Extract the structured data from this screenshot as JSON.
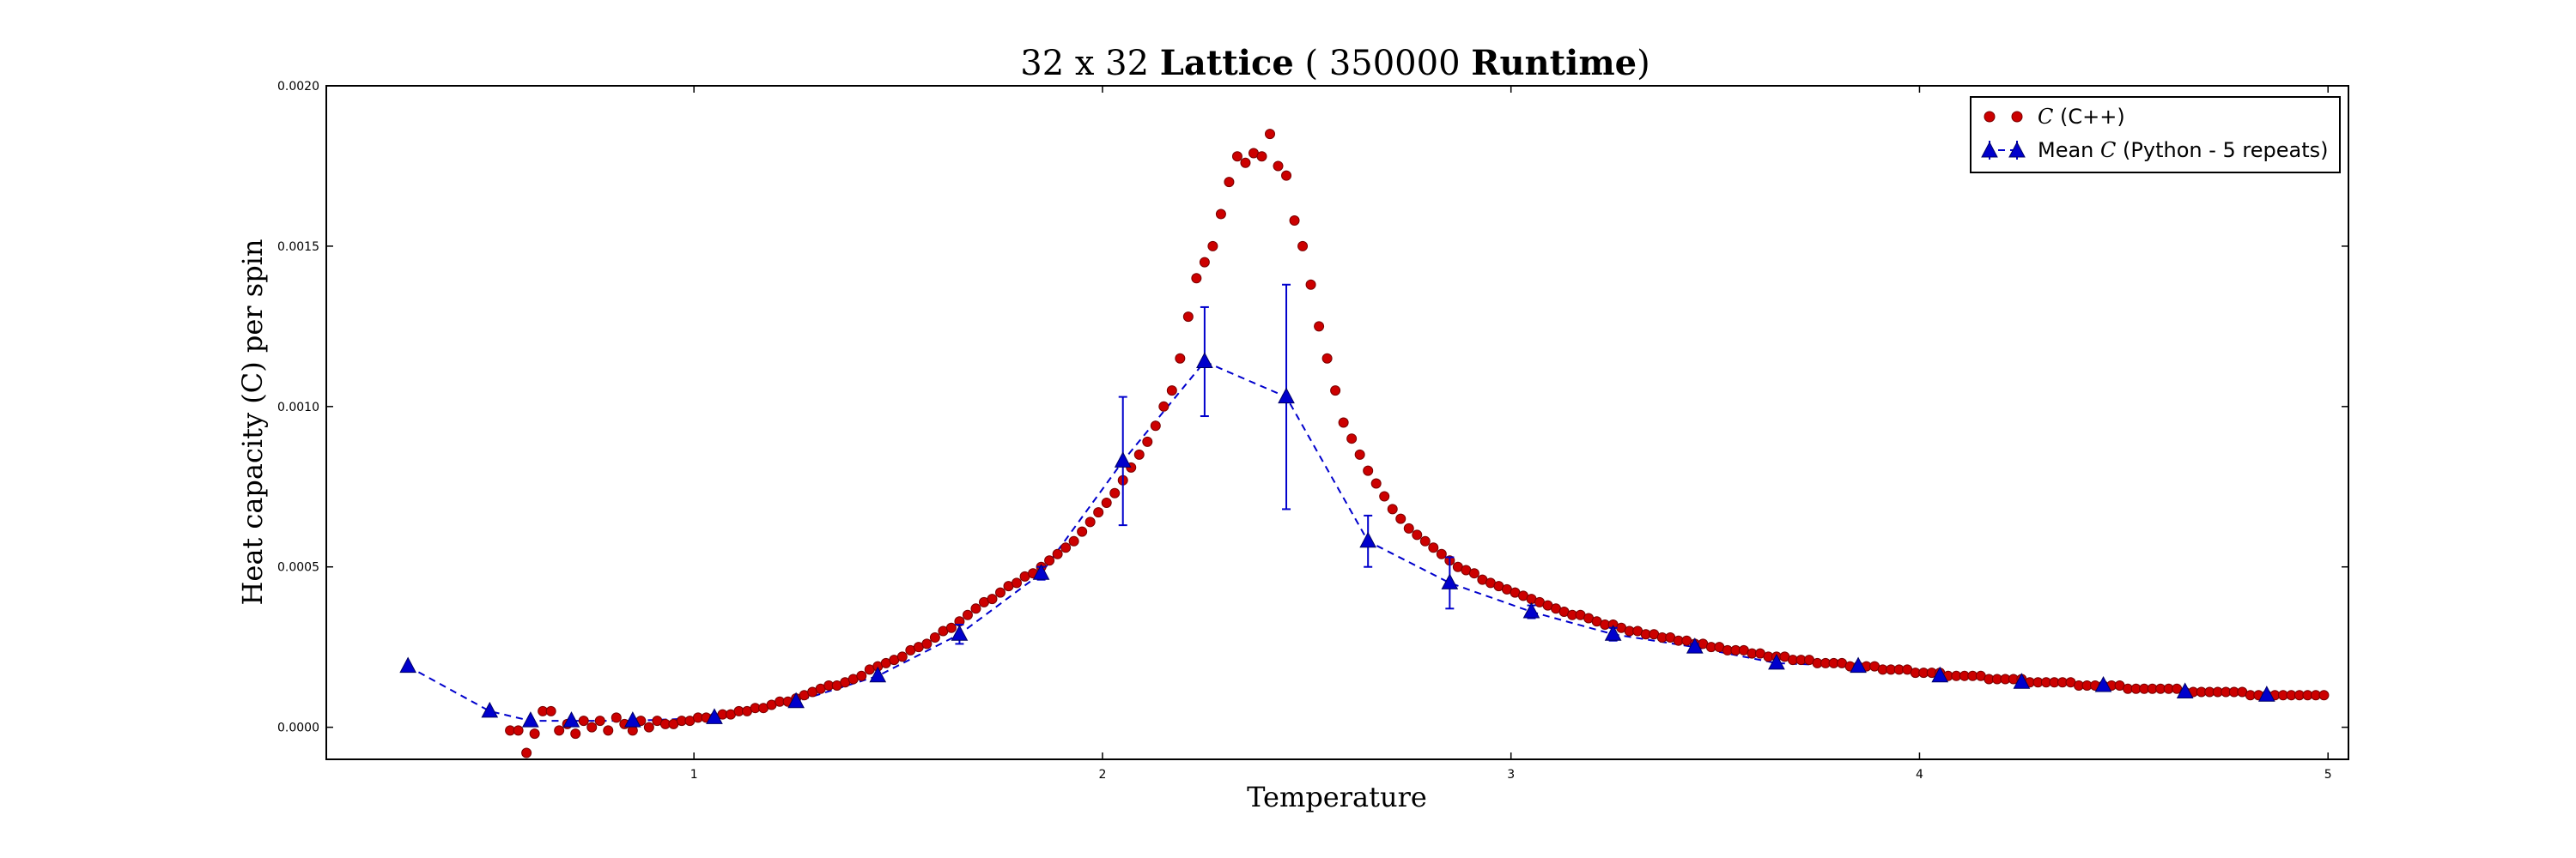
{
  "chart_data": {
    "type": "scatter",
    "title": {
      "prefix": "32 x 32 ",
      "bold1": "Lattice",
      "mid": " ( 350000 ",
      "bold2": "Runtime",
      "suffix": ")"
    },
    "xlabel": "Temperature",
    "ylabel": "Heat capacity (C) per spin",
    "xlim": [
      0.1,
      5.05
    ],
    "ylim": [
      -0.0001,
      0.002
    ],
    "x_ticks": [
      1,
      2,
      3,
      4,
      5
    ],
    "x_tick_labels": [
      "1",
      "2",
      "3",
      "4",
      "5"
    ],
    "y_ticks": [
      0.0,
      0.0005,
      0.001,
      0.0015,
      0.002
    ],
    "y_tick_labels": [
      "0.0000",
      "0.0005",
      "0.0010",
      "0.0015",
      "0.0020"
    ],
    "grid": false,
    "legend_position": "top-right",
    "colors": {
      "cpp": "#cc0000",
      "python": "#0000cc"
    },
    "series": [
      {
        "name": "C (C++)",
        "legend_math": "C",
        "legend_rest": " (C++)",
        "style": "red-circles",
        "points": [
          [
            0.55,
            -1e-05
          ],
          [
            0.57,
            -1e-05
          ],
          [
            0.59,
            -8e-05
          ],
          [
            0.61,
            -2e-05
          ],
          [
            0.63,
            5e-05
          ],
          [
            0.65,
            5e-05
          ],
          [
            0.67,
            -1e-05
          ],
          [
            0.69,
            1e-05
          ],
          [
            0.71,
            -2e-05
          ],
          [
            0.73,
            2e-05
          ],
          [
            0.75,
            0.0
          ],
          [
            0.77,
            2e-05
          ],
          [
            0.79,
            -1e-05
          ],
          [
            0.81,
            3e-05
          ],
          [
            0.83,
            1e-05
          ],
          [
            0.85,
            -1e-05
          ],
          [
            0.87,
            2e-05
          ],
          [
            0.89,
            0.0
          ],
          [
            0.91,
            2e-05
          ],
          [
            0.93,
            1e-05
          ],
          [
            0.95,
            1e-05
          ],
          [
            0.97,
            2e-05
          ],
          [
            0.99,
            2e-05
          ],
          [
            1.01,
            3e-05
          ],
          [
            1.03,
            3e-05
          ],
          [
            1.05,
            3e-05
          ],
          [
            1.07,
            4e-05
          ],
          [
            1.09,
            4e-05
          ],
          [
            1.11,
            5e-05
          ],
          [
            1.13,
            5e-05
          ],
          [
            1.15,
            6e-05
          ],
          [
            1.17,
            6e-05
          ],
          [
            1.19,
            7e-05
          ],
          [
            1.21,
            8e-05
          ],
          [
            1.23,
            8e-05
          ],
          [
            1.25,
            9e-05
          ],
          [
            1.27,
            0.0001
          ],
          [
            1.29,
            0.00011
          ],
          [
            1.31,
            0.00012
          ],
          [
            1.33,
            0.00013
          ],
          [
            1.35,
            0.00013
          ],
          [
            1.37,
            0.00014
          ],
          [
            1.39,
            0.00015
          ],
          [
            1.41,
            0.00016
          ],
          [
            1.43,
            0.00018
          ],
          [
            1.45,
            0.00019
          ],
          [
            1.47,
            0.0002
          ],
          [
            1.49,
            0.00021
          ],
          [
            1.51,
            0.00022
          ],
          [
            1.53,
            0.00024
          ],
          [
            1.55,
            0.00025
          ],
          [
            1.57,
            0.00026
          ],
          [
            1.59,
            0.00028
          ],
          [
            1.61,
            0.0003
          ],
          [
            1.63,
            0.00031
          ],
          [
            1.65,
            0.00033
          ],
          [
            1.67,
            0.00035
          ],
          [
            1.69,
            0.00037
          ],
          [
            1.71,
            0.00039
          ],
          [
            1.73,
            0.0004
          ],
          [
            1.75,
            0.00042
          ],
          [
            1.77,
            0.00044
          ],
          [
            1.79,
            0.00045
          ],
          [
            1.81,
            0.00047
          ],
          [
            1.83,
            0.00048
          ],
          [
            1.85,
            0.0005
          ],
          [
            1.87,
            0.00052
          ],
          [
            1.89,
            0.00054
          ],
          [
            1.91,
            0.00056
          ],
          [
            1.93,
            0.00058
          ],
          [
            1.95,
            0.00061
          ],
          [
            1.97,
            0.00064
          ],
          [
            1.99,
            0.00067
          ],
          [
            2.01,
            0.0007
          ],
          [
            2.03,
            0.00073
          ],
          [
            2.05,
            0.00077
          ],
          [
            2.07,
            0.00081
          ],
          [
            2.09,
            0.00085
          ],
          [
            2.11,
            0.00089
          ],
          [
            2.13,
            0.00094
          ],
          [
            2.15,
            0.001
          ],
          [
            2.17,
            0.00105
          ],
          [
            2.19,
            0.00115
          ],
          [
            2.21,
            0.00128
          ],
          [
            2.23,
            0.0014
          ],
          [
            2.25,
            0.00145
          ],
          [
            2.27,
            0.0015
          ],
          [
            2.29,
            0.0016
          ],
          [
            2.31,
            0.0017
          ],
          [
            2.33,
            0.00178
          ],
          [
            2.35,
            0.00176
          ],
          [
            2.37,
            0.00179
          ],
          [
            2.39,
            0.00178
          ],
          [
            2.41,
            0.00185
          ],
          [
            2.43,
            0.00175
          ],
          [
            2.45,
            0.00172
          ],
          [
            2.47,
            0.00158
          ],
          [
            2.49,
            0.0015
          ],
          [
            2.51,
            0.00138
          ],
          [
            2.53,
            0.00125
          ],
          [
            2.55,
            0.00115
          ],
          [
            2.57,
            0.00105
          ],
          [
            2.59,
            0.00095
          ],
          [
            2.61,
            0.0009
          ],
          [
            2.63,
            0.00085
          ],
          [
            2.65,
            0.0008
          ],
          [
            2.67,
            0.00076
          ],
          [
            2.69,
            0.00072
          ],
          [
            2.71,
            0.00068
          ],
          [
            2.73,
            0.00065
          ],
          [
            2.75,
            0.00062
          ],
          [
            2.77,
            0.0006
          ],
          [
            2.79,
            0.00058
          ],
          [
            2.81,
            0.00056
          ],
          [
            2.83,
            0.00054
          ],
          [
            2.85,
            0.00052
          ],
          [
            2.87,
            0.0005
          ],
          [
            2.89,
            0.00049
          ],
          [
            2.91,
            0.00048
          ],
          [
            2.93,
            0.00046
          ],
          [
            2.95,
            0.00045
          ],
          [
            2.97,
            0.00044
          ],
          [
            2.99,
            0.00043
          ],
          [
            3.01,
            0.00042
          ],
          [
            3.03,
            0.00041
          ],
          [
            3.05,
            0.0004
          ],
          [
            3.07,
            0.00039
          ],
          [
            3.09,
            0.00038
          ],
          [
            3.11,
            0.00037
          ],
          [
            3.13,
            0.00036
          ],
          [
            3.15,
            0.00035
          ],
          [
            3.17,
            0.00035
          ],
          [
            3.19,
            0.00034
          ],
          [
            3.21,
            0.00033
          ],
          [
            3.23,
            0.00032
          ],
          [
            3.25,
            0.00032
          ],
          [
            3.27,
            0.00031
          ],
          [
            3.29,
            0.0003
          ],
          [
            3.31,
            0.0003
          ],
          [
            3.33,
            0.00029
          ],
          [
            3.35,
            0.00029
          ],
          [
            3.37,
            0.00028
          ],
          [
            3.39,
            0.00028
          ],
          [
            3.41,
            0.00027
          ],
          [
            3.43,
            0.00027
          ],
          [
            3.45,
            0.00026
          ],
          [
            3.47,
            0.00026
          ],
          [
            3.49,
            0.00025
          ],
          [
            3.51,
            0.00025
          ],
          [
            3.53,
            0.00024
          ],
          [
            3.55,
            0.00024
          ],
          [
            3.57,
            0.00024
          ],
          [
            3.59,
            0.00023
          ],
          [
            3.61,
            0.00023
          ],
          [
            3.63,
            0.00022
          ],
          [
            3.65,
            0.00022
          ],
          [
            3.67,
            0.00022
          ],
          [
            3.69,
            0.00021
          ],
          [
            3.71,
            0.00021
          ],
          [
            3.73,
            0.00021
          ],
          [
            3.75,
            0.0002
          ],
          [
            3.77,
            0.0002
          ],
          [
            3.79,
            0.0002
          ],
          [
            3.81,
            0.0002
          ],
          [
            3.83,
            0.00019
          ],
          [
            3.85,
            0.00019
          ],
          [
            3.87,
            0.00019
          ],
          [
            3.89,
            0.00019
          ],
          [
            3.91,
            0.00018
          ],
          [
            3.93,
            0.00018
          ],
          [
            3.95,
            0.00018
          ],
          [
            3.97,
            0.00018
          ],
          [
            3.99,
            0.00017
          ],
          [
            4.01,
            0.00017
          ],
          [
            4.03,
            0.00017
          ],
          [
            4.05,
            0.00017
          ],
          [
            4.07,
            0.00016
          ],
          [
            4.09,
            0.00016
          ],
          [
            4.11,
            0.00016
          ],
          [
            4.13,
            0.00016
          ],
          [
            4.15,
            0.00016
          ],
          [
            4.17,
            0.00015
          ],
          [
            4.19,
            0.00015
          ],
          [
            4.21,
            0.00015
          ],
          [
            4.23,
            0.00015
          ],
          [
            4.25,
            0.00015
          ],
          [
            4.27,
            0.00014
          ],
          [
            4.29,
            0.00014
          ],
          [
            4.31,
            0.00014
          ],
          [
            4.33,
            0.00014
          ],
          [
            4.35,
            0.00014
          ],
          [
            4.37,
            0.00014
          ],
          [
            4.39,
            0.00013
          ],
          [
            4.41,
            0.00013
          ],
          [
            4.43,
            0.00013
          ],
          [
            4.45,
            0.00013
          ],
          [
            4.47,
            0.00013
          ],
          [
            4.49,
            0.00013
          ],
          [
            4.51,
            0.00012
          ],
          [
            4.53,
            0.00012
          ],
          [
            4.55,
            0.00012
          ],
          [
            4.57,
            0.00012
          ],
          [
            4.59,
            0.00012
          ],
          [
            4.61,
            0.00012
          ],
          [
            4.63,
            0.00012
          ],
          [
            4.65,
            0.00011
          ],
          [
            4.67,
            0.00011
          ],
          [
            4.69,
            0.00011
          ],
          [
            4.71,
            0.00011
          ],
          [
            4.73,
            0.00011
          ],
          [
            4.75,
            0.00011
          ],
          [
            4.77,
            0.00011
          ],
          [
            4.79,
            0.00011
          ],
          [
            4.81,
            0.0001
          ],
          [
            4.83,
            0.0001
          ],
          [
            4.85,
            0.0001
          ],
          [
            4.87,
            0.0001
          ],
          [
            4.89,
            0.0001
          ],
          [
            4.91,
            0.0001
          ],
          [
            4.93,
            0.0001
          ],
          [
            4.95,
            0.0001
          ],
          [
            4.97,
            0.0001
          ],
          [
            4.99,
            0.0001
          ]
        ]
      },
      {
        "name": "Mean C (Python - 5 repeats)",
        "legend_math": "C",
        "legend_before": "Mean ",
        "legend_rest": " (Python - 5 repeats)",
        "style": "blue-triangles-dashed-errorbars",
        "points": [
          {
            "x": 0.3,
            "y": 0.00019,
            "err": 0
          },
          {
            "x": 0.5,
            "y": 5e-05,
            "err": 0
          },
          {
            "x": 0.6,
            "y": 2e-05,
            "err": 0
          },
          {
            "x": 0.7,
            "y": 2e-05,
            "err": 0
          },
          {
            "x": 0.85,
            "y": 2e-05,
            "err": 0
          },
          {
            "x": 1.05,
            "y": 3e-05,
            "err": 0
          },
          {
            "x": 1.25,
            "y": 8e-05,
            "err": 0
          },
          {
            "x": 1.45,
            "y": 0.00016,
            "err": 0
          },
          {
            "x": 1.65,
            "y": 0.00029,
            "err": 3e-05
          },
          {
            "x": 1.85,
            "y": 0.00048,
            "err": 2e-05
          },
          {
            "x": 2.05,
            "y": 0.00083,
            "err": 0.0002
          },
          {
            "x": 2.25,
            "y": 0.00114,
            "err": 0.00017
          },
          {
            "x": 2.45,
            "y": 0.00103,
            "err": 0.00035
          },
          {
            "x": 2.65,
            "y": 0.00058,
            "err": 8e-05
          },
          {
            "x": 2.85,
            "y": 0.00045,
            "err": 8e-05
          },
          {
            "x": 3.05,
            "y": 0.00036,
            "err": 2e-05
          },
          {
            "x": 3.25,
            "y": 0.00029,
            "err": 2e-05
          },
          {
            "x": 3.45,
            "y": 0.00025,
            "err": 1e-05
          },
          {
            "x": 3.65,
            "y": 0.0002,
            "err": 0
          },
          {
            "x": 3.85,
            "y": 0.00019,
            "err": 0
          },
          {
            "x": 4.05,
            "y": 0.00016,
            "err": 0
          },
          {
            "x": 4.25,
            "y": 0.00014,
            "err": 0
          },
          {
            "x": 4.45,
            "y": 0.00013,
            "err": 0
          },
          {
            "x": 4.65,
            "y": 0.00011,
            "err": 0
          },
          {
            "x": 4.85,
            "y": 0.0001,
            "err": 0
          }
        ]
      }
    ]
  }
}
